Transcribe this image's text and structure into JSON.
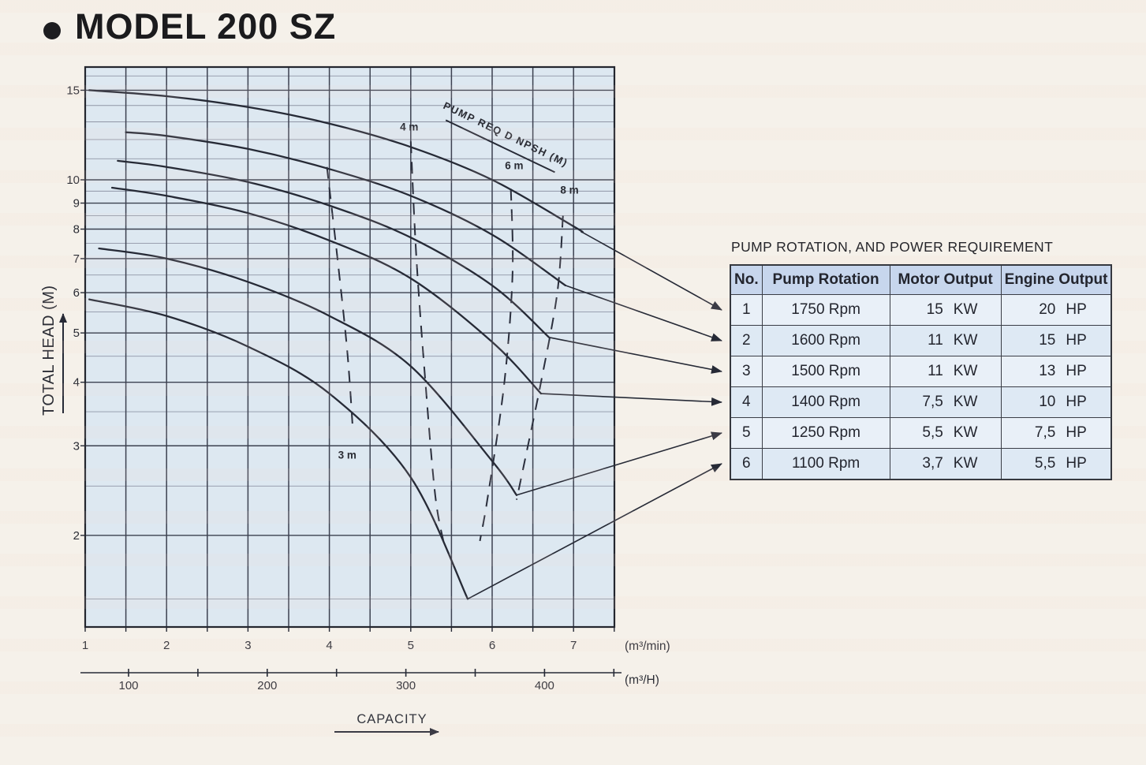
{
  "page": {
    "title": "MODEL 200 SZ"
  },
  "chart_data": {
    "type": "line",
    "title": "MODEL 200 SZ",
    "xlabel": "CAPACITY",
    "ylabel": "TOTAL HEAD (M)",
    "x_axis": {
      "scale": "linear",
      "unit_label": "(m³/min)",
      "range": [
        1,
        7.5
      ],
      "ticks": [
        1,
        2,
        3,
        4,
        5,
        6,
        7
      ]
    },
    "x_axis_secondary": {
      "unit_label": "(m³/H)",
      "ticks": [
        100,
        150,
        200,
        250,
        300,
        350,
        400,
        450
      ],
      "labeled_ticks": [
        100,
        200,
        300,
        400
      ]
    },
    "y_axis": {
      "scale": "log",
      "unit_label": "TOTAL HEAD (M)",
      "range": [
        1.32,
        16.7
      ],
      "ticks": [
        15,
        10,
        9,
        8,
        7,
        6,
        5,
        4,
        3,
        2
      ],
      "minor_gridlines": [
        1.5,
        2.5,
        3.5,
        4.5,
        5.5,
        6.5,
        7.5,
        8.5,
        9.5,
        11,
        12,
        13,
        14,
        16
      ]
    },
    "series": [
      {
        "no": 1,
        "name": "1750 Rpm",
        "rpm": 1750,
        "points": [
          [
            1.05,
            15.0
          ],
          [
            2,
            14.6
          ],
          [
            3,
            13.9
          ],
          [
            4,
            12.9
          ],
          [
            5,
            11.6
          ],
          [
            6,
            10.0
          ],
          [
            7,
            8.1
          ],
          [
            7.1,
            7.9
          ]
        ]
      },
      {
        "no": 2,
        "name": "1600 Rpm",
        "rpm": 1600,
        "points": [
          [
            1.5,
            12.4
          ],
          [
            2,
            12.2
          ],
          [
            3,
            11.5
          ],
          [
            4,
            10.5
          ],
          [
            5,
            9.3
          ],
          [
            6,
            7.8
          ],
          [
            6.9,
            6.2
          ]
        ]
      },
      {
        "no": 3,
        "name": "1500 Rpm",
        "rpm": 1500,
        "points": [
          [
            1.4,
            10.9
          ],
          [
            2,
            10.6
          ],
          [
            3,
            9.9
          ],
          [
            4,
            8.9
          ],
          [
            5,
            7.7
          ],
          [
            6,
            6.2
          ],
          [
            6.7,
            4.9
          ]
        ]
      },
      {
        "no": 4,
        "name": "1400 Rpm",
        "rpm": 1400,
        "points": [
          [
            1.33,
            9.65
          ],
          [
            2,
            9.3
          ],
          [
            3,
            8.6
          ],
          [
            4,
            7.6
          ],
          [
            5,
            6.4
          ],
          [
            6,
            4.8
          ],
          [
            6.6,
            3.8
          ]
        ]
      },
      {
        "no": 5,
        "name": "1250 Rpm",
        "rpm": 1250,
        "points": [
          [
            1.17,
            7.33
          ],
          [
            2,
            7.0
          ],
          [
            3,
            6.3
          ],
          [
            4,
            5.4
          ],
          [
            5,
            4.3
          ],
          [
            6,
            2.8
          ],
          [
            6.3,
            2.4
          ]
        ]
      },
      {
        "no": 6,
        "name": "1100 Rpm",
        "rpm": 1100,
        "points": [
          [
            1.05,
            5.82
          ],
          [
            2,
            5.4
          ],
          [
            3,
            4.7
          ],
          [
            4,
            3.8
          ],
          [
            5,
            2.6
          ],
          [
            5.7,
            1.5
          ]
        ]
      }
    ],
    "npsh_reference_label": "PUMP REQ D NPSH (M)",
    "npsh_reference_line": [
      [
        5.43,
        13.1
      ],
      [
        6.77,
        10.35
      ]
    ],
    "npsh_lines": [
      {
        "label": "3 m",
        "label_at": [
          4.22,
          2.83
        ],
        "points": [
          [
            3.97,
            10.6
          ],
          [
            4.1,
            7.0
          ],
          [
            4.22,
            4.6
          ],
          [
            4.29,
            3.2
          ]
        ]
      },
      {
        "label": "4 m",
        "label_at": [
          4.98,
          12.5
        ],
        "points": [
          [
            5.0,
            11.9
          ],
          [
            5.07,
            7.0
          ],
          [
            5.18,
            4.0
          ],
          [
            5.3,
            2.4
          ],
          [
            5.41,
            1.92
          ]
        ]
      },
      {
        "label": "6 m",
        "label_at": [
          6.27,
          10.5
        ],
        "points": [
          [
            6.23,
            9.6
          ],
          [
            6.25,
            6.5
          ],
          [
            6.15,
            4.0
          ],
          [
            5.95,
            2.4
          ],
          [
            5.85,
            1.95
          ]
        ]
      },
      {
        "label": "8 m",
        "label_at": [
          6.95,
          9.4
        ],
        "points": [
          [
            6.87,
            8.5
          ],
          [
            6.8,
            6.0
          ],
          [
            6.6,
            4.0
          ],
          [
            6.4,
            2.8
          ],
          [
            6.3,
            2.35
          ]
        ]
      }
    ],
    "leaders": [
      {
        "from_series": 0,
        "to_row": 0
      },
      {
        "from_series": 1,
        "to_row": 1
      },
      {
        "from_series": 2,
        "to_row": 2
      },
      {
        "from_series": 3,
        "to_row": 3
      },
      {
        "from_series": 4,
        "to_row": 4
      },
      {
        "from_series": 5,
        "to_row": 5
      }
    ]
  },
  "table": {
    "title": "PUMP ROTATION, AND POWER REQUIREMENT",
    "columns": [
      "No.",
      "Pump Rotation",
      "Motor Output",
      "Engine Output"
    ],
    "rows": [
      {
        "no": "1",
        "rotation": "1750 Rpm",
        "motor_value": "15",
        "motor_unit": "KW",
        "engine_value": "20",
        "engine_unit": "HP"
      },
      {
        "no": "2",
        "rotation": "1600 Rpm",
        "motor_value": "11",
        "motor_unit": "KW",
        "engine_value": "15",
        "engine_unit": "HP"
      },
      {
        "no": "3",
        "rotation": "1500 Rpm",
        "motor_value": "11",
        "motor_unit": "KW",
        "engine_value": "13",
        "engine_unit": "HP"
      },
      {
        "no": "4",
        "rotation": "1400 Rpm",
        "motor_value": "7,5",
        "motor_unit": "KW",
        "engine_value": "10",
        "engine_unit": "HP"
      },
      {
        "no": "5",
        "rotation": "1250 Rpm",
        "motor_value": "5,5",
        "motor_unit": "KW",
        "engine_value": "7,5",
        "engine_unit": "HP"
      },
      {
        "no": "6",
        "rotation": "1100 Rpm",
        "motor_value": "3,7",
        "motor_unit": "KW",
        "engine_value": "5,5",
        "engine_unit": "HP"
      }
    ]
  }
}
